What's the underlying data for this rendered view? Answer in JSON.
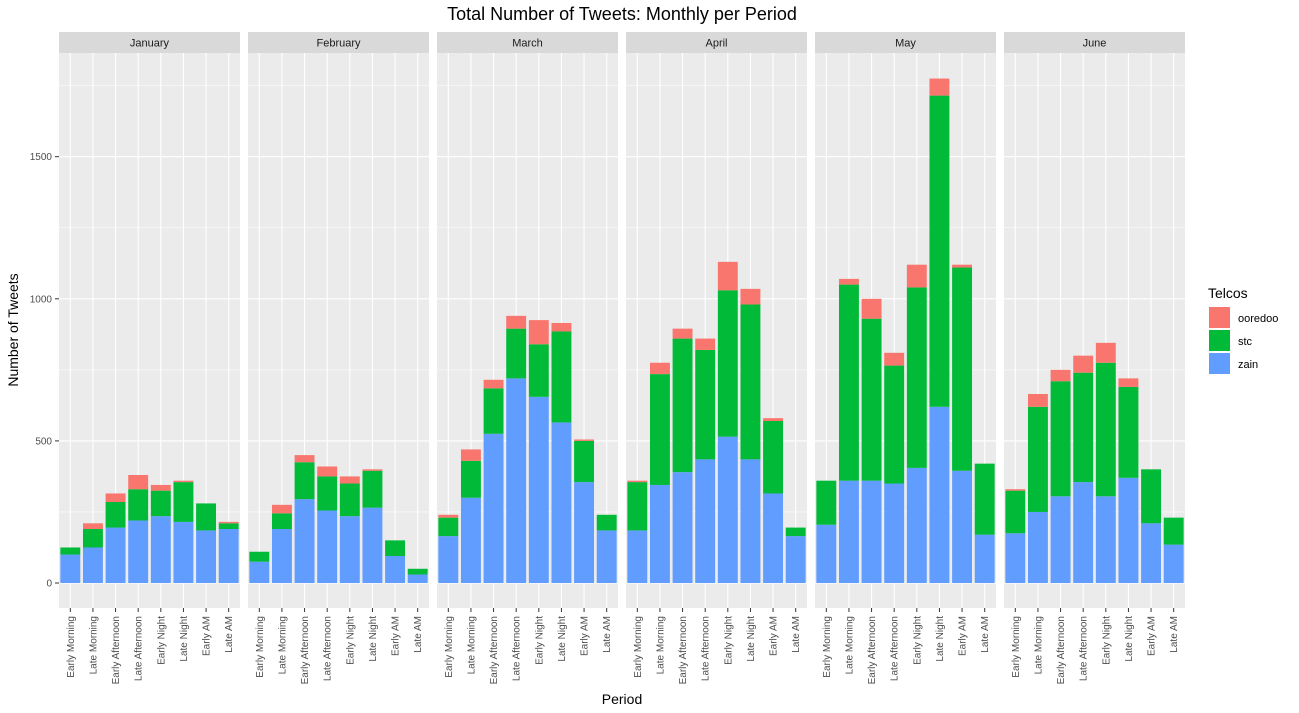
{
  "chart_data": {
    "type": "bar",
    "stacked": true,
    "faceted_by": "month",
    "title": "Total Number of Tweets: Monthly per Period",
    "xlabel": "Period",
    "ylabel": "Number of Tweets",
    "ylim": [
      0,
      1800
    ],
    "yticks": [
      0,
      500,
      1000,
      1500
    ],
    "grid": true,
    "legend": {
      "title": "Telcos",
      "position": "right",
      "entries": [
        "ooredoo",
        "stc",
        "zain"
      ]
    },
    "colors": {
      "ooredoo": "#F8766D",
      "stc": "#00BA38",
      "zain": "#619CFF",
      "panel_background": "#EBEBEB",
      "strip_background": "#D9D9D9",
      "grid": "#FFFFFF"
    },
    "categories": [
      "Early Morning",
      "Late Morning",
      "Early Afternoon",
      "Late Afternoon",
      "Early Night",
      "Late Night",
      "Early AM",
      "Late AM"
    ],
    "facets": [
      {
        "name": "January",
        "series": [
          {
            "name": "zain",
            "values": [
              100,
              125,
              195,
              220,
              235,
              215,
              185,
              190
            ]
          },
          {
            "name": "stc",
            "values": [
              25,
              65,
              90,
              110,
              90,
              140,
              95,
              20
            ]
          },
          {
            "name": "ooredoo",
            "values": [
              0,
              20,
              30,
              50,
              20,
              5,
              0,
              5
            ]
          }
        ]
      },
      {
        "name": "February",
        "series": [
          {
            "name": "zain",
            "values": [
              75,
              190,
              295,
              255,
              235,
              265,
              95,
              30
            ]
          },
          {
            "name": "stc",
            "values": [
              35,
              55,
              130,
              120,
              115,
              130,
              55,
              20
            ]
          },
          {
            "name": "ooredoo",
            "values": [
              0,
              30,
              25,
              35,
              25,
              5,
              0,
              0
            ]
          }
        ]
      },
      {
        "name": "March",
        "series": [
          {
            "name": "zain",
            "values": [
              165,
              300,
              525,
              720,
              655,
              565,
              355,
              185
            ]
          },
          {
            "name": "stc",
            "values": [
              65,
              130,
              160,
              175,
              185,
              320,
              145,
              55
            ]
          },
          {
            "name": "ooredoo",
            "values": [
              10,
              40,
              30,
              45,
              85,
              30,
              5,
              0
            ]
          }
        ]
      },
      {
        "name": "April",
        "series": [
          {
            "name": "zain",
            "values": [
              185,
              345,
              390,
              435,
              515,
              435,
              315,
              165
            ]
          },
          {
            "name": "stc",
            "values": [
              170,
              390,
              470,
              385,
              515,
              545,
              255,
              30
            ]
          },
          {
            "name": "ooredoo",
            "values": [
              5,
              40,
              35,
              40,
              100,
              55,
              10,
              0
            ]
          }
        ]
      },
      {
        "name": "May",
        "series": [
          {
            "name": "zain",
            "values": [
              205,
              360,
              360,
              350,
              405,
              620,
              395,
              170
            ]
          },
          {
            "name": "stc",
            "values": [
              155,
              690,
              570,
              415,
              635,
              1095,
              715,
              250
            ]
          },
          {
            "name": "ooredoo",
            "values": [
              0,
              20,
              70,
              45,
              80,
              60,
              10,
              0
            ]
          }
        ]
      },
      {
        "name": "June",
        "series": [
          {
            "name": "zain",
            "values": [
              175,
              250,
              305,
              355,
              305,
              370,
              210,
              135
            ]
          },
          {
            "name": "stc",
            "values": [
              150,
              370,
              405,
              385,
              470,
              320,
              190,
              95
            ]
          },
          {
            "name": "ooredoo",
            "values": [
              5,
              45,
              40,
              60,
              70,
              30,
              0,
              0
            ]
          }
        ]
      }
    ]
  }
}
